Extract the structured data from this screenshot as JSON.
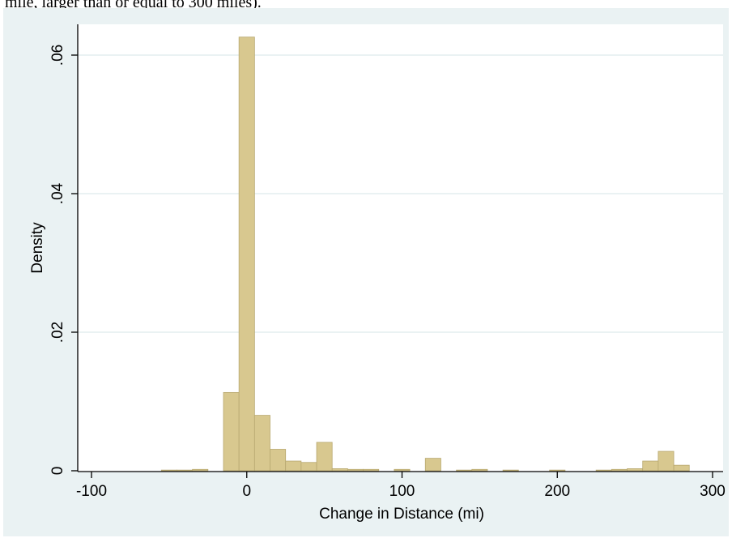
{
  "caption": "mile, larger than or equal to 300 miles).",
  "colors": {
    "outer_bg": "#eaf2f3",
    "plot_bg": "#ffffff",
    "bar_fill": "#d8c88f",
    "bar_stroke": "#b8a870",
    "grid": "#e4eeef",
    "axis": "#000000"
  },
  "chart_data": {
    "type": "bar",
    "xlabel": "Change in Distance (mi)",
    "ylabel": "Density",
    "xlim": [
      -105,
      300
    ],
    "ylim": [
      0,
      0.064
    ],
    "grid": true,
    "x_ticks": [
      {
        "value": -100,
        "label": "-100"
      },
      {
        "value": 0,
        "label": "0"
      },
      {
        "value": 100,
        "label": "100"
      },
      {
        "value": 200,
        "label": "200"
      },
      {
        "value": 300,
        "label": "300"
      }
    ],
    "y_ticks": [
      {
        "value": 0,
        "label": "0"
      },
      {
        "value": 0.02,
        "label": ".02"
      },
      {
        "value": 0.04,
        "label": ".04"
      },
      {
        "value": 0.06,
        "label": ".06"
      }
    ],
    "bin_width": 10,
    "bins": [
      {
        "start": -55,
        "value": 0.0001
      },
      {
        "start": -45,
        "value": 0.0001
      },
      {
        "start": -35,
        "value": 0.0002
      },
      {
        "start": -15,
        "value": 0.0113
      },
      {
        "start": -5,
        "value": 0.0626
      },
      {
        "start": 5,
        "value": 0.008
      },
      {
        "start": 15,
        "value": 0.0031
      },
      {
        "start": 25,
        "value": 0.0014
      },
      {
        "start": 35,
        "value": 0.0012
      },
      {
        "start": 45,
        "value": 0.0041
      },
      {
        "start": 55,
        "value": 0.0003
      },
      {
        "start": 65,
        "value": 0.0002
      },
      {
        "start": 75,
        "value": 0.0002
      },
      {
        "start": 95,
        "value": 0.0002
      },
      {
        "start": 115,
        "value": 0.0018
      },
      {
        "start": 135,
        "value": 0.0001
      },
      {
        "start": 145,
        "value": 0.0002
      },
      {
        "start": 165,
        "value": 0.0001
      },
      {
        "start": 195,
        "value": 0.0001
      },
      {
        "start": 225,
        "value": 0.0001
      },
      {
        "start": 235,
        "value": 0.0002
      },
      {
        "start": 245,
        "value": 0.0003
      },
      {
        "start": 255,
        "value": 0.0014
      },
      {
        "start": 265,
        "value": 0.0028
      },
      {
        "start": 275,
        "value": 0.0008
      }
    ]
  }
}
